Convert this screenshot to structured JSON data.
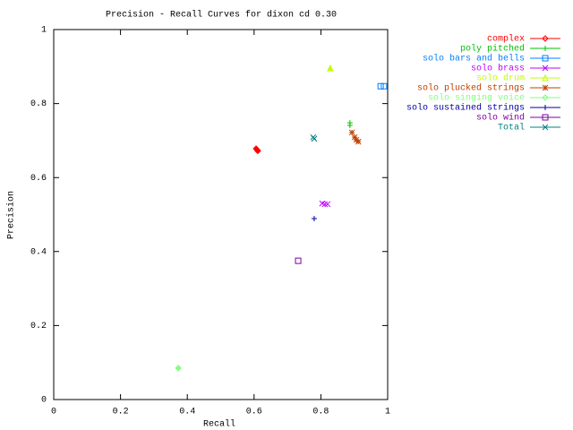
{
  "chart_data": {
    "type": "scatter",
    "title": "Precision - Recall Curves for dixon cd 0.30",
    "x_label": "Recall",
    "y_label": "Precision",
    "xlim": [
      0,
      1
    ],
    "ylim": [
      0,
      1
    ],
    "xticks": [
      0,
      0.2,
      0.4,
      0.6,
      0.8,
      1
    ],
    "yticks": [
      0,
      0.2,
      0.4,
      0.6,
      0.8,
      1
    ],
    "grid": false,
    "legend": "right",
    "series": [
      {
        "name": "complex",
        "color": "#ff0000",
        "marker": "diamond",
        "x": [
          0.606,
          0.609,
          0.611
        ],
        "values": [
          0.678,
          0.675,
          0.672
        ]
      },
      {
        "name": "poly pitched",
        "color": "#00c000",
        "marker": "plus",
        "x": [
          0.887,
          0.887
        ],
        "values": [
          0.748,
          0.741
        ]
      },
      {
        "name": "solo bars and bells",
        "color": "#0080ff",
        "marker": "square",
        "x": [
          0.979,
          0.989
        ],
        "values": [
          0.847,
          0.847
        ]
      },
      {
        "name": "solo brass",
        "color": "#c000ff",
        "marker": "cross",
        "x": [
          0.804,
          0.812,
          0.82
        ],
        "values": [
          0.53,
          0.528,
          0.528
        ]
      },
      {
        "name": "solo drum",
        "color": "#c0ff00",
        "marker": "triangle",
        "x": [
          0.828
        ],
        "values": [
          0.896
        ]
      },
      {
        "name": "solo plucked strings",
        "color": "#c04000",
        "marker": "star",
        "x": [
          0.893,
          0.901,
          0.906,
          0.912
        ],
        "values": [
          0.722,
          0.709,
          0.702,
          0.697
        ]
      },
      {
        "name": "solo singing voice",
        "color": "#80ff80",
        "marker": "diamond",
        "x": [
          0.373
        ],
        "values": [
          0.085
        ]
      },
      {
        "name": "solo sustained strings",
        "color": "#0000a0",
        "marker": "plus",
        "x": [
          0.78
        ],
        "values": [
          0.489
        ]
      },
      {
        "name": "solo wind",
        "color": "#8000a0",
        "marker": "square",
        "x": [
          0.732
        ],
        "values": [
          0.375
        ]
      },
      {
        "name": "Total",
        "color": "#008080",
        "marker": "cross",
        "x": [
          0.777,
          0.78
        ],
        "values": [
          0.709,
          0.705
        ]
      }
    ]
  }
}
